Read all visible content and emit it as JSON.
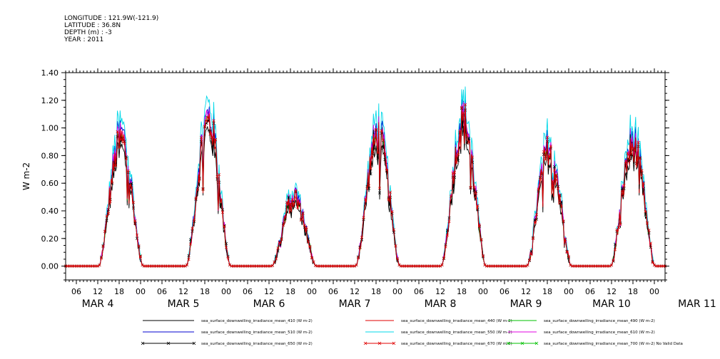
{
  "header": {
    "longitude": "LONGITUDE : 121.9W(-121.9)",
    "latitude": "LATITUDE : 36.8N",
    "depth": "DEPTH (m) : -3",
    "year": "YEAR : 2011"
  },
  "chart_data": {
    "type": "line",
    "ylabel": "W m-2",
    "ylim": [
      -0.1,
      1.4
    ],
    "yticks": [
      "0.00",
      "0.20",
      "0.40",
      "0.60",
      "0.80",
      "1.00",
      "1.20",
      "1.40"
    ],
    "hour_ticks": [
      "06",
      "12",
      "18",
      "00",
      "06",
      "12",
      "18",
      "00",
      "06",
      "12",
      "18",
      "00",
      "06",
      "12",
      "18",
      "00",
      "06",
      "12",
      "18",
      "00",
      "06",
      "12",
      "18",
      "00",
      "06",
      "12",
      "18",
      "00"
    ],
    "day_labels": [
      "MAR   4",
      "MAR   5",
      "MAR   6",
      "MAR   7",
      "MAR   8",
      "MAR   9",
      "MAR 10",
      "MAR 11"
    ],
    "xrange_hours": [
      3,
      171
    ],
    "daily_peaks": [
      {
        "day": "MAR 4",
        "peak_hour": 18.5,
        "peak": 0.92
      },
      {
        "day": "MAR 5",
        "peak_hour": 43,
        "peak": 1.05
      },
      {
        "day": "MAR 6",
        "peak_hour": 67,
        "peak": 0.5
      },
      {
        "day": "MAR 7",
        "peak_hour": 90.5,
        "peak": 0.95
      },
      {
        "day": "MAR 8",
        "peak_hour": 114.5,
        "peak": 1.05
      },
      {
        "day": "MAR 9",
        "peak_hour": 138.5,
        "peak": 0.85
      },
      {
        "day": "MAR 10",
        "peak_hour": 162,
        "peak": 0.88
      }
    ],
    "series": [
      {
        "name": "sea_surface_downwelling_irradiance_mean_410 (W m-2)",
        "color": "#000000",
        "scale": 0.9,
        "marker": "none"
      },
      {
        "name": "sea_surface_downwelling_irradiance_mean_440 (W m-2)",
        "color": "#e00000",
        "scale": 0.96,
        "marker": "none"
      },
      {
        "name": "sea_surface_downwelling_irradiance_mean_490 (W m-2)",
        "color": "#00c000",
        "scale": 1.0,
        "marker": "none"
      },
      {
        "name": "sea_surface_downwelling_irradiance_mean_510 (W m-2)",
        "color": "#0000d0",
        "scale": 1.04,
        "marker": "none"
      },
      {
        "name": "sea_surface_downwelling_irradiance_mean_550 (W m-2)",
        "color": "#00d8e8",
        "scale": 1.12,
        "marker": "none"
      },
      {
        "name": "sea_surface_downwelling_irradiance_mean_610 (W m-2)",
        "color": "#e000e0",
        "scale": 1.02,
        "marker": "none"
      },
      {
        "name": "sea_surface_downwelling_irradiance_mean_650 (W m-2)",
        "color": "#000000",
        "scale": 0.97,
        "marker": "x"
      },
      {
        "name": "sea_surface_downwelling_irradiance_mean_670 (W m-2)",
        "color": "#e00000",
        "scale": 0.99,
        "marker": "x"
      },
      {
        "name": "sea_surface_downwelling_irradiance_mean_700 (W m-2) No Valid Data",
        "color": "#00c000",
        "scale": 0,
        "marker": "x"
      }
    ]
  }
}
